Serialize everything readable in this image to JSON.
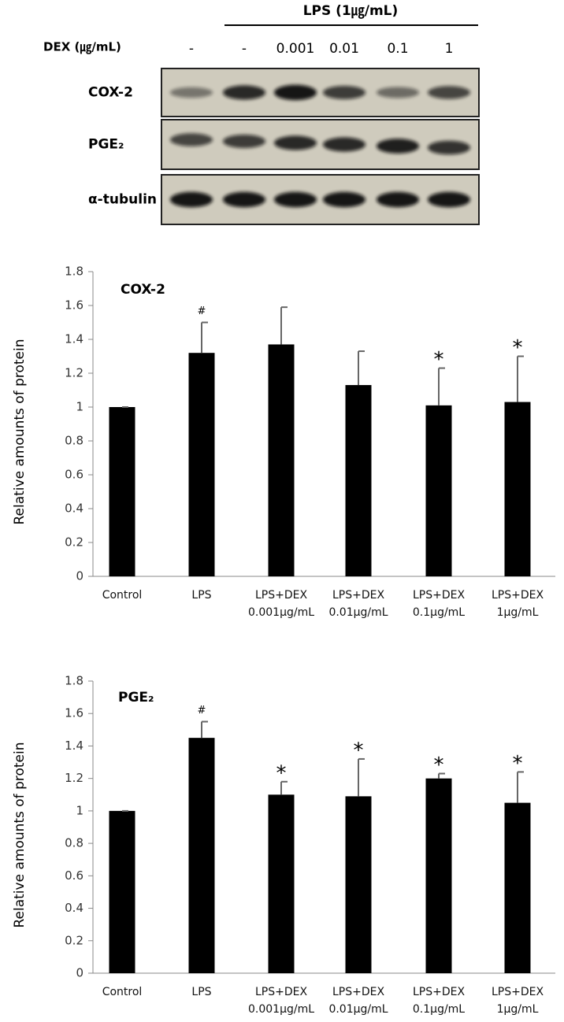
{
  "blot": {
    "lps_label": "LPS (1㎍/mL)",
    "dex_label": "DEX (㎍/mL)",
    "doses": [
      "-",
      "-",
      "0.001",
      "0.01",
      "0.1",
      "1"
    ],
    "rows": [
      "COX-2",
      "PGE₂",
      "α-tubulin"
    ]
  },
  "chart_data": [
    {
      "type": "bar",
      "title": "COX-2",
      "ylabel": "Relative amounts of protein",
      "categories": [
        [
          "Control"
        ],
        [
          "LPS"
        ],
        [
          "LPS+DEX",
          "0.001μg/mL"
        ],
        [
          "LPS+DEX",
          "0.01μg/mL"
        ],
        [
          "LPS+DEX",
          "0.1μg/mL"
        ],
        [
          "LPS+DEX",
          "1μg/mL"
        ]
      ],
      "values": [
        1.0,
        1.32,
        1.37,
        1.13,
        1.01,
        1.03
      ],
      "errors": [
        0.0,
        0.18,
        0.22,
        0.2,
        0.22,
        0.27
      ],
      "annotations": [
        null,
        "#",
        null,
        null,
        "*",
        "*"
      ],
      "color": "#000000",
      "error_color": "#666666",
      "ylim": [
        0,
        1.8
      ],
      "yticks": [
        0,
        0.2,
        0.4,
        0.6,
        0.8,
        1,
        1.2,
        1.4,
        1.6,
        1.8
      ]
    },
    {
      "type": "bar",
      "title": "PGE₂",
      "ylabel": "Relative amounts of protein",
      "categories": [
        [
          "Control"
        ],
        [
          "LPS"
        ],
        [
          "LPS+DEX",
          "0.001μg/mL"
        ],
        [
          "LPS+DEX",
          "0.01μg/mL"
        ],
        [
          "LPS+DEX",
          "0.1μg/mL"
        ],
        [
          "LPS+DEX",
          "1μg/mL"
        ]
      ],
      "values": [
        1.0,
        1.45,
        1.1,
        1.09,
        1.2,
        1.05
      ],
      "errors": [
        0.0,
        0.1,
        0.08,
        0.23,
        0.03,
        0.19
      ],
      "annotations": [
        null,
        "#",
        "*",
        "*",
        "*",
        "*"
      ],
      "color": "#000000",
      "error_color": "#666666",
      "ylim": [
        0,
        1.8
      ],
      "yticks": [
        0,
        0.2,
        0.4,
        0.6,
        0.8,
        1,
        1.2,
        1.4,
        1.6,
        1.8
      ]
    }
  ]
}
